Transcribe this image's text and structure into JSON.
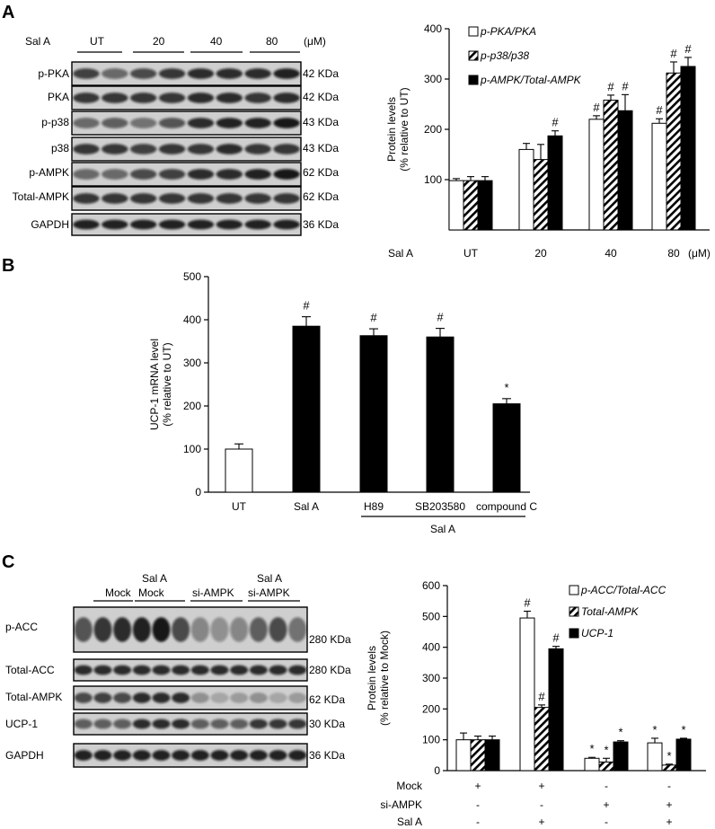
{
  "panelA": {
    "letter": "A",
    "blot": {
      "treatment_label": "Sal A",
      "groups": [
        "UT",
        "20",
        "40",
        "80"
      ],
      "unit": "(μM)",
      "rows": [
        {
          "name": "p-PKA",
          "size": "42 KDa"
        },
        {
          "name": "PKA",
          "size": "42 KDa"
        },
        {
          "name": "p-p38",
          "size": "43 KDa"
        },
        {
          "name": "p38",
          "size": "43 KDa"
        },
        {
          "name": "p-AMPK",
          "size": "62 KDa"
        },
        {
          "name": "Total-AMPK",
          "size": "62 KDa"
        },
        {
          "name": "GAPDH",
          "size": "36 KDa"
        }
      ]
    }
  },
  "panelB": {
    "letter": "B",
    "group_label": "Sal A"
  },
  "panelC": {
    "letter": "C",
    "blot": {
      "groups": [
        [
          "Mock"
        ],
        [
          "Sal A",
          "Mock"
        ],
        [
          "si-AMPK"
        ],
        [
          "Sal A",
          "si-AMPK"
        ]
      ],
      "rows": [
        {
          "name": "p-ACC",
          "size": "280 KDa"
        },
        {
          "name": "Total-ACC",
          "size": "280 KDa"
        },
        {
          "name": "Total-AMPK",
          "size": "62 KDa"
        },
        {
          "name": "UCP-1",
          "size": "30 KDa"
        },
        {
          "name": "GAPDH",
          "size": "36 KDa"
        }
      ]
    },
    "conditions": [
      {
        "label": "Mock",
        "values": [
          "+",
          "+",
          "-",
          "-"
        ]
      },
      {
        "label": "si-AMPK",
        "values": [
          "-",
          "-",
          "+",
          "+"
        ]
      },
      {
        "label": "Sal A",
        "values": [
          "-",
          "+",
          "-",
          "+"
        ]
      }
    ]
  },
  "chart_data": [
    {
      "type": "bar",
      "panel": "A",
      "ylabel": "Protein levels\n(% relative to UT)",
      "xlabel_prefix": "Sal A",
      "x_unit": "(μM)",
      "categories": [
        "UT",
        "20",
        "40",
        "80"
      ],
      "ylim": [
        0,
        400
      ],
      "yticks": [
        100,
        200,
        300,
        400
      ],
      "legend_position": "top-right",
      "series": [
        {
          "name": "p-PKA/PKA",
          "fill": "white",
          "values": [
            98,
            160,
            220,
            212
          ],
          "errors": [
            4,
            12,
            7,
            9
          ],
          "marks": [
            "",
            "",
            "#",
            "#"
          ]
        },
        {
          "name": "p-p38/p38",
          "fill": "hatch",
          "values": [
            98,
            140,
            258,
            312
          ],
          "errors": [
            8,
            30,
            10,
            22
          ],
          "marks": [
            "",
            "",
            "#",
            "#"
          ]
        },
        {
          "name": "p-AMPK/Total-AMPK",
          "fill": "black",
          "values": [
            98,
            187,
            237,
            325
          ],
          "errors": [
            8,
            10,
            32,
            18
          ],
          "marks": [
            "",
            "#",
            "#",
            "#"
          ]
        }
      ]
    },
    {
      "type": "bar",
      "panel": "B",
      "ylabel": "UCP-1 mRNA level\n(% relative to UT)",
      "categories": [
        "UT",
        "Sal A",
        "H89",
        "SB203580",
        "compound C"
      ],
      "ylim": [
        0,
        500
      ],
      "yticks": [
        0,
        100,
        200,
        300,
        400,
        500
      ],
      "series": [
        {
          "fills": [
            "white",
            "black",
            "black",
            "black",
            "black"
          ],
          "values": [
            100,
            385,
            363,
            360,
            205
          ],
          "errors": [
            12,
            22,
            16,
            20,
            12
          ],
          "marks": [
            "",
            "#",
            "#",
            "#",
            "*"
          ]
        }
      ]
    },
    {
      "type": "bar",
      "panel": "C",
      "ylabel": "Protein levels\n(% relative to Mock)",
      "ylim": [
        0,
        600
      ],
      "yticks": [
        0,
        100,
        200,
        300,
        400,
        500,
        600
      ],
      "legend_position": "top-right",
      "n_groups": 4,
      "series": [
        {
          "name": "p-ACC/Total-ACC",
          "fill": "white",
          "values": [
            100,
            495,
            40,
            90
          ],
          "errors": [
            22,
            22,
            3,
            15
          ],
          "marks": [
            "",
            "#",
            "*",
            "*"
          ]
        },
        {
          "name": "Total-AMPK",
          "fill": "hatch",
          "values": [
            100,
            205,
            28,
            18
          ],
          "errors": [
            12,
            8,
            12,
            3
          ],
          "marks": [
            "",
            "#",
            "*",
            "*"
          ]
        },
        {
          "name": "UCP-1",
          "fill": "black",
          "values": [
            100,
            395,
            93,
            102
          ],
          "errors": [
            12,
            8,
            4,
            3
          ],
          "marks": [
            "",
            "#",
            "*",
            "*"
          ]
        }
      ]
    }
  ]
}
